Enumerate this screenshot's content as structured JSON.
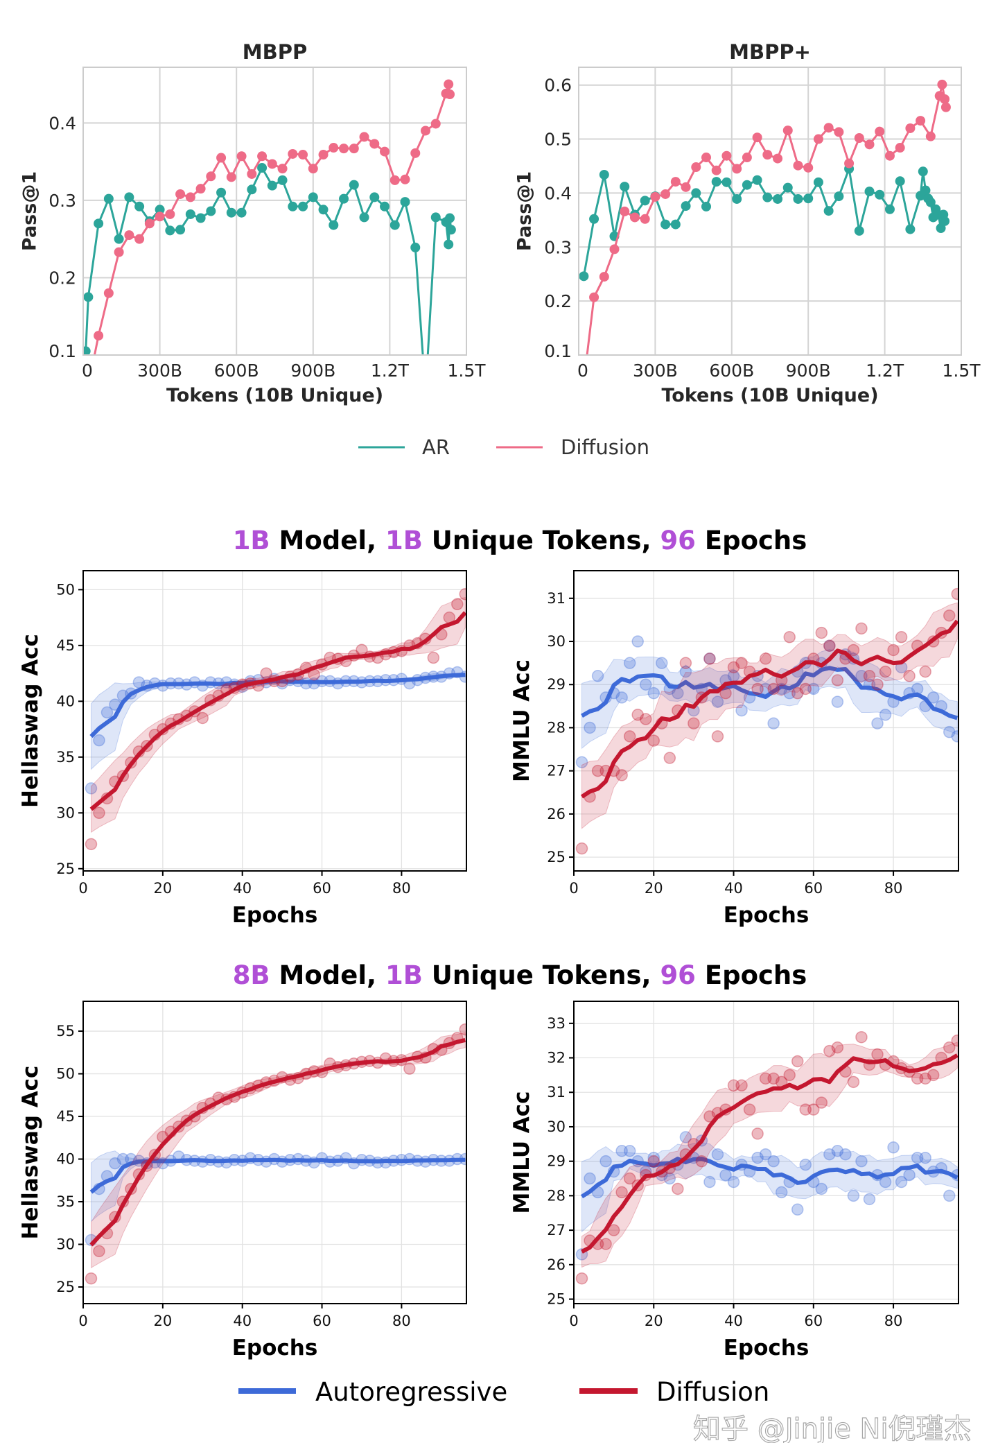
{
  "colors": {
    "ar_top": "#2ca59a",
    "diffusion_top": "#ee6b87",
    "ar_bottom": "#3d6ad8",
    "diffusion_bottom": "#c4172f",
    "highlight": "#b04fd6"
  },
  "suptitles": [
    {
      "parts": [
        {
          "text": "1B",
          "highlight": true
        },
        {
          "text": " Model, ",
          "highlight": false
        },
        {
          "text": "1B",
          "highlight": true
        },
        {
          "text": " Unique Tokens, ",
          "highlight": false
        },
        {
          "text": "96",
          "highlight": true
        },
        {
          "text": " Epochs",
          "highlight": false
        }
      ]
    },
    {
      "parts": [
        {
          "text": "8B",
          "highlight": true
        },
        {
          "text": " Model, ",
          "highlight": false
        },
        {
          "text": "1B",
          "highlight": true
        },
        {
          "text": " Unique Tokens, ",
          "highlight": false
        },
        {
          "text": "96",
          "highlight": true
        },
        {
          "text": " Epochs",
          "highlight": false
        }
      ]
    }
  ],
  "legends": {
    "top": {
      "items": [
        {
          "label": "AR",
          "color": "#2ca59a"
        },
        {
          "label": "Diffusion",
          "color": "#ee6b87"
        }
      ]
    },
    "bottom": {
      "items": [
        {
          "label": "Autoregressive",
          "color": "#3d6ad8"
        },
        {
          "label": "Diffusion",
          "color": "#c4172f"
        }
      ]
    }
  },
  "watermark": "知乎 @Jinjie Ni倪瑾杰",
  "chart_data": [
    {
      "type": "line",
      "title": "MBPP",
      "xlabel": "Tokens (10B Unique)",
      "ylabel": "Pass@1",
      "xlim": [
        0,
        1500
      ],
      "ylim": [
        0.1,
        0.472
      ],
      "grid": true,
      "xticks": [
        0,
        300,
        600,
        900,
        1200,
        1500
      ],
      "xtick_labels": [
        "0",
        "300B",
        "600B",
        "900B",
        "1.2T",
        "1.5T"
      ],
      "yticks": [
        0.1,
        0.2,
        0.3,
        0.4
      ],
      "ytick_labels": [
        "0.1",
        "0.2",
        "0.3",
        "0.4"
      ],
      "series": [
        {
          "name": "AR",
          "x": [
            10,
            20,
            60,
            100,
            140,
            180,
            220,
            260,
            300,
            340,
            380,
            420,
            460,
            500,
            540,
            580,
            620,
            660,
            700,
            740,
            780,
            820,
            860,
            900,
            940,
            980,
            1020,
            1060,
            1100,
            1140,
            1180,
            1220,
            1260,
            1300,
            1340,
            1380,
            1420,
            1430,
            1435,
            1440
          ],
          "y": [
            0.105,
            0.175,
            0.27,
            0.302,
            0.25,
            0.304,
            0.292,
            0.273,
            0.288,
            0.261,
            0.262,
            0.282,
            0.277,
            0.286,
            0.31,
            0.284,
            0.284,
            0.314,
            0.342,
            0.319,
            0.326,
            0.292,
            0.292,
            0.304,
            0.288,
            0.268,
            0.302,
            0.32,
            0.278,
            0.304,
            0.292,
            0.268,
            0.298,
            0.239,
            0.05,
            0.278,
            0.272,
            0.243,
            0.277,
            0.262
          ]
        },
        {
          "name": "Diffusion",
          "x": [
            20,
            60,
            100,
            140,
            180,
            220,
            260,
            300,
            340,
            380,
            420,
            460,
            500,
            540,
            580,
            620,
            660,
            700,
            740,
            780,
            820,
            860,
            900,
            940,
            980,
            1020,
            1060,
            1100,
            1140,
            1180,
            1220,
            1260,
            1300,
            1340,
            1380,
            1420,
            1430,
            1435
          ],
          "y": [
            0.06,
            0.125,
            0.18,
            0.233,
            0.255,
            0.25,
            0.27,
            0.279,
            0.282,
            0.308,
            0.304,
            0.315,
            0.331,
            0.355,
            0.33,
            0.357,
            0.334,
            0.357,
            0.347,
            0.341,
            0.36,
            0.359,
            0.341,
            0.359,
            0.368,
            0.367,
            0.367,
            0.382,
            0.373,
            0.363,
            0.326,
            0.327,
            0.361,
            0.39,
            0.399,
            0.438,
            0.45,
            0.437
          ]
        }
      ]
    },
    {
      "type": "line",
      "title": "MBPP+",
      "xlabel": "Tokens (10B Unique)",
      "ylabel": "Pass@1",
      "xlim": [
        0,
        1500
      ],
      "ylim": [
        0.1,
        0.633
      ],
      "grid": true,
      "xticks": [
        0,
        300,
        600,
        900,
        1200,
        1500
      ],
      "xtick_labels": [
        "0",
        "300B",
        "600B",
        "900B",
        "1.2T",
        "1.5T"
      ],
      "yticks": [
        0.1,
        0.2,
        0.3,
        0.4,
        0.5,
        0.6
      ],
      "ytick_labels": [
        "0.1",
        "0.2",
        "0.3",
        "0.4",
        "0.5",
        "0.6"
      ],
      "series": [
        {
          "name": "AR",
          "x": [
            20,
            60,
            100,
            140,
            180,
            220,
            260,
            300,
            340,
            380,
            420,
            460,
            500,
            540,
            580,
            620,
            660,
            700,
            740,
            780,
            820,
            860,
            900,
            940,
            980,
            1020,
            1060,
            1100,
            1140,
            1180,
            1220,
            1260,
            1300,
            1340,
            1350,
            1360,
            1370,
            1380,
            1390,
            1400,
            1410,
            1420,
            1430,
            1435
          ],
          "y": [
            0.246,
            0.352,
            0.434,
            0.32,
            0.412,
            0.36,
            0.386,
            0.394,
            0.342,
            0.342,
            0.376,
            0.4,
            0.375,
            0.421,
            0.42,
            0.389,
            0.415,
            0.424,
            0.392,
            0.389,
            0.41,
            0.389,
            0.39,
            0.42,
            0.367,
            0.394,
            0.445,
            0.33,
            0.403,
            0.397,
            0.37,
            0.422,
            0.333,
            0.395,
            0.44,
            0.405,
            0.39,
            0.383,
            0.355,
            0.37,
            0.36,
            0.335,
            0.36,
            0.348
          ]
        },
        {
          "name": "Diffusion",
          "x": [
            20,
            60,
            100,
            140,
            180,
            220,
            260,
            300,
            340,
            380,
            420,
            460,
            500,
            540,
            580,
            620,
            660,
            700,
            740,
            780,
            820,
            860,
            900,
            940,
            980,
            1020,
            1060,
            1100,
            1140,
            1180,
            1220,
            1260,
            1300,
            1340,
            1380,
            1415,
            1425,
            1435,
            1440
          ],
          "y": [
            0.05,
            0.207,
            0.245,
            0.296,
            0.366,
            0.355,
            0.352,
            0.393,
            0.398,
            0.421,
            0.411,
            0.448,
            0.466,
            0.442,
            0.469,
            0.445,
            0.466,
            0.503,
            0.471,
            0.464,
            0.516,
            0.451,
            0.447,
            0.5,
            0.521,
            0.513,
            0.455,
            0.502,
            0.49,
            0.514,
            0.469,
            0.484,
            0.52,
            0.534,
            0.505,
            0.58,
            0.601,
            0.574,
            0.559
          ]
        }
      ]
    },
    {
      "type": "scatter",
      "title": "",
      "xlabel": "Epochs",
      "ylabel": "Hellaswag Acc",
      "xlim": [
        0,
        96.3
      ],
      "ylim": [
        24.8,
        51.7
      ],
      "grid": true,
      "x_step": 2,
      "xticks": [
        0,
        20,
        40,
        60,
        80
      ],
      "xtick_labels": [
        "0",
        "20",
        "40",
        "60",
        "80"
      ],
      "yticks": [
        25,
        30,
        35,
        40,
        45,
        50
      ],
      "ytick_labels": [
        "25",
        "30",
        "35",
        "40",
        "45",
        "50"
      ],
      "series": [
        {
          "name": "Autoregressive",
          "y": [
            32.2,
            36.5,
            39,
            39.7,
            40.5,
            40.7,
            41.7,
            41.4,
            41.6,
            41.4,
            41.6,
            41.6,
            41.5,
            41.7,
            41.4,
            41.7,
            41.6,
            41.7,
            41.5,
            41.3,
            41.8,
            41.9,
            41.7,
            42,
            41.6,
            41.9,
            41.8,
            41.6,
            41.6,
            41.8,
            41.8,
            41.6,
            41.8,
            41.8,
            41.7,
            41.8,
            41.8,
            41.9,
            41.9,
            42,
            41.6,
            41.9,
            42.1,
            42.2,
            42.2,
            42.5,
            42.6,
            42.2
          ]
        },
        {
          "name": "Diffusion",
          "y": [
            27.2,
            30,
            31.3,
            32.8,
            33.3,
            34.5,
            35.5,
            36,
            37,
            37.5,
            38,
            38.4,
            38.7,
            39.1,
            38.5,
            40.1,
            40.5,
            41,
            41.2,
            41.5,
            41.6,
            41.4,
            42.5,
            41.8,
            41.8,
            42.2,
            42.4,
            43,
            42.4,
            43.3,
            43.9,
            43.8,
            43.6,
            44.1,
            44.6,
            44,
            43.9,
            44.2,
            44.4,
            44.5,
            45,
            45.2,
            45.6,
            43.9,
            46,
            47.5,
            48.7,
            49.6
          ]
        }
      ]
    },
    {
      "type": "scatter",
      "title": "",
      "xlabel": "Epochs",
      "ylabel": "MMLU Acc",
      "xlim": [
        0,
        96.3
      ],
      "ylim": [
        24.68,
        31.64
      ],
      "grid": true,
      "x_step": 2,
      "xticks": [
        0,
        20,
        40,
        60,
        80
      ],
      "xtick_labels": [
        "0",
        "20",
        "40",
        "60",
        "80"
      ],
      "yticks": [
        25,
        26,
        27,
        28,
        29,
        30,
        31
      ],
      "ytick_labels": [
        "25",
        "26",
        "27",
        "28",
        "29",
        "30",
        "31"
      ],
      "series": [
        {
          "name": "Autoregressive",
          "y": [
            27.2,
            28,
            29.2,
            28.7,
            28.8,
            28.7,
            29.5,
            30,
            29,
            28.8,
            29.5,
            28.9,
            28.8,
            29.3,
            28.4,
            28.9,
            29.6,
            28.6,
            29.1,
            29.2,
            28.4,
            28.7,
            29.2,
            28.9,
            28.1,
            28.9,
            28.8,
            29.3,
            29.5,
            28.9,
            29.5,
            29.9,
            28.6,
            29.7,
            29.6,
            29.2,
            29,
            28.1,
            28.3,
            28.6,
            29.4,
            28.8,
            28.9,
            28.5,
            28.7,
            28.5,
            27.9,
            27.8
          ]
        },
        {
          "name": "Diffusion",
          "y": [
            25.2,
            26.4,
            27,
            27,
            27,
            26.9,
            27.8,
            28.3,
            28.2,
            27.7,
            28.1,
            27.3,
            28.4,
            29.5,
            28.1,
            28.7,
            29.6,
            27.8,
            28.8,
            29.4,
            29.5,
            29.3,
            28.9,
            29.6,
            28.9,
            29.1,
            30.1,
            28.8,
            28.9,
            29.6,
            30.2,
            29.9,
            29.1,
            29.6,
            29.8,
            30.3,
            29.2,
            29,
            29.3,
            29.8,
            30.1,
            29.2,
            29.9,
            29.3,
            30,
            30.2,
            30.6,
            31.1
          ]
        }
      ]
    },
    {
      "type": "scatter",
      "title": "",
      "xlabel": "Epochs",
      "ylabel": "Hellaswag Acc",
      "xlim": [
        0,
        96.3
      ],
      "ylim": [
        23.05,
        58.5
      ],
      "grid": true,
      "x_step": 2,
      "xticks": [
        0,
        20,
        40,
        60,
        80
      ],
      "xtick_labels": [
        "0",
        "20",
        "40",
        "60",
        "80"
      ],
      "yticks": [
        25,
        30,
        35,
        40,
        45,
        50,
        55
      ],
      "ytick_labels": [
        "25",
        "30",
        "35",
        "40",
        "45",
        "50",
        "55"
      ],
      "series": [
        {
          "name": "Autoregressive",
          "y": [
            30.5,
            36.5,
            38,
            39.5,
            40,
            40,
            39.8,
            39.5,
            39.6,
            39.5,
            39.8,
            40.3,
            39.9,
            39.8,
            39.7,
            39.9,
            39.7,
            39.6,
            39.9,
            39.8,
            40.1,
            39.9,
            39.7,
            40,
            39.7,
            39.9,
            40,
            39.8,
            39.6,
            40.1,
            39.7,
            39.8,
            40.1,
            39.5,
            39.9,
            39.8,
            39.6,
            39.6,
            39.8,
            39.9,
            40,
            39.8,
            39.7,
            39.9,
            39.8,
            39.8,
            40,
            40
          ]
        },
        {
          "name": "Diffusion",
          "y": [
            26,
            29.2,
            31.3,
            33.2,
            35,
            36.5,
            38.2,
            39.2,
            40.5,
            42.6,
            43.2,
            43.8,
            44.5,
            45,
            46,
            46.5,
            47.2,
            47,
            47.3,
            47.8,
            48.3,
            48.6,
            49,
            49.2,
            49.6,
            49.3,
            49.5,
            50,
            50.3,
            50.2,
            51.2,
            50.8,
            51,
            51.2,
            51.4,
            51.5,
            51.3,
            51.8,
            51.5,
            51.6,
            50.6,
            52,
            51.9,
            52.9,
            52.8,
            53.6,
            54.2,
            55.2
          ]
        }
      ]
    },
    {
      "type": "scatter",
      "title": "",
      "xlabel": "Epochs",
      "ylabel": "MMLU Acc",
      "xlim": [
        0,
        96.3
      ],
      "ylim": [
        24.87,
        33.64
      ],
      "grid": true,
      "x_step": 2,
      "xticks": [
        0,
        20,
        40,
        60,
        80
      ],
      "xtick_labels": [
        "0",
        "20",
        "40",
        "60",
        "80"
      ],
      "yticks": [
        25,
        26,
        27,
        28,
        29,
        30,
        31,
        32,
        33
      ],
      "ytick_labels": [
        "25",
        "26",
        "27",
        "28",
        "29",
        "30",
        "31",
        "32",
        "33"
      ],
      "series": [
        {
          "name": "Autoregressive",
          "y": [
            26.3,
            28.5,
            28.1,
            29,
            28.7,
            29.3,
            29.3,
            29,
            28.7,
            29.1,
            28.6,
            28.5,
            28.9,
            29.7,
            29.1,
            29.6,
            28.4,
            29.2,
            28.6,
            28.4,
            28.9,
            28.7,
            29.1,
            29.2,
            29,
            28.1,
            28.4,
            27.6,
            28.9,
            28.4,
            28.2,
            29.2,
            29.3,
            29.2,
            28,
            29,
            27.9,
            28.6,
            28.4,
            29.4,
            28.4,
            28.6,
            29.1,
            29.1,
            28.7,
            28.8,
            28,
            28.6
          ]
        },
        {
          "name": "Diffusion",
          "y": [
            25.6,
            26.7,
            26.6,
            26.6,
            27,
            28.1,
            28.5,
            28.3,
            28.6,
            29,
            28.7,
            28.8,
            28.2,
            29.2,
            29.5,
            29,
            30.3,
            30.4,
            30.5,
            31.2,
            31.2,
            30.5,
            29.8,
            31.4,
            31.4,
            31.3,
            31.5,
            31.9,
            30.5,
            30.5,
            30.7,
            32.2,
            32.3,
            31.6,
            31.3,
            32.6,
            31.8,
            32.1,
            31.8,
            31.9,
            31.7,
            31.6,
            31.4,
            31.4,
            31.5,
            32,
            32.3,
            32.5
          ]
        }
      ]
    }
  ]
}
